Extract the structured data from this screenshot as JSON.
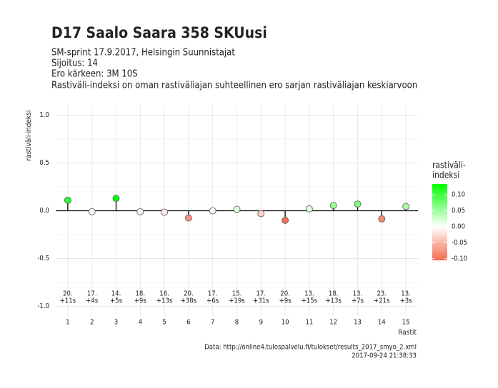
{
  "chart_data": {
    "type": "lollipop",
    "title": "D17 Saalo Saara 358 SKUusi",
    "subtitle": [
      "SM-sprint 17.9.2017, Helsingin Suunnistajat",
      "Sijoitus: 14",
      "Ero kärkeen: 3M 10S",
      "Rastiväli-indeksi on oman rastiväliajan suhteellinen ero sarjan rastiväliajan keskiarvoon"
    ],
    "ylabel": "rastiväli-indeksi",
    "xlabel": "Rastit",
    "caption": [
      "Data: http://online4.tulospalvelu.fi/tulokset/results_2017_smyo_2.xml",
      "2017-09-24 21:38:33"
    ],
    "categories": [
      "1",
      "2",
      "3",
      "4",
      "5",
      "6",
      "7",
      "8",
      "9",
      "10",
      "11",
      "12",
      "13",
      "14",
      "15"
    ],
    "values": [
      0.11,
      -0.01,
      0.13,
      -0.01,
      -0.015,
      -0.075,
      0.0,
      0.015,
      -0.03,
      -0.1,
      0.02,
      0.055,
      0.07,
      -0.085,
      0.045
    ],
    "point_labels": [
      [
        "20.",
        "+11s"
      ],
      [
        "17.",
        "+4s"
      ],
      [
        "14.",
        "+5s"
      ],
      [
        "18.",
        "+9s"
      ],
      [
        "16.",
        "+13s"
      ],
      [
        "20.",
        "+38s"
      ],
      [
        "17.",
        "+6s"
      ],
      [
        "15.",
        "+19s"
      ],
      [
        "17.",
        "+31s"
      ],
      [
        "20.",
        "+9s"
      ],
      [
        "13.",
        "+15s"
      ],
      [
        "18.",
        "+13s"
      ],
      [
        "13.",
        "+7s"
      ],
      [
        "23.",
        "+21s"
      ],
      [
        "13.",
        "+3s"
      ]
    ],
    "ylim": [
      -1.1,
      1.1
    ],
    "yticks": [
      {
        "value": 1,
        "label": "1.0"
      },
      {
        "value": 0.5,
        "label": "0.5"
      },
      {
        "value": 0,
        "label": "0.0"
      },
      {
        "value": -0.5,
        "label": "-0.5"
      },
      {
        "value": -1,
        "label": "-1.0"
      }
    ],
    "grid": true,
    "legend": {
      "title": [
        "rastiväli-",
        "indeksi"
      ],
      "lim": [
        -0.105,
        0.134
      ],
      "ticks": [
        {
          "value": 0.1,
          "label": "0.10"
        },
        {
          "value": 0.05,
          "label": "0.05"
        },
        {
          "value": 0,
          "label": "0.00"
        },
        {
          "value": -0.05,
          "label": "-0.05"
        },
        {
          "value": -0.1,
          "label": "-0.10"
        }
      ],
      "color_low": "#f4694e",
      "color_mid": "#ffffff",
      "color_high": "#00ff00"
    }
  }
}
